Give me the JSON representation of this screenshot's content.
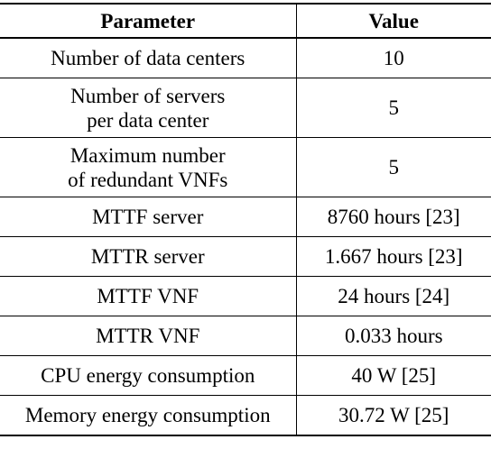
{
  "table": {
    "headers": [
      "Parameter",
      "Value"
    ],
    "rows": [
      {
        "parameter": [
          "Number of data centers"
        ],
        "value": "10"
      },
      {
        "parameter": [
          "Number of servers",
          "per data center"
        ],
        "value": "5"
      },
      {
        "parameter": [
          "Maximum number",
          "of redundant VNFs"
        ],
        "value": "5"
      },
      {
        "parameter": [
          "MTTF server"
        ],
        "value": "8760 hours [23]"
      },
      {
        "parameter": [
          "MTTR server"
        ],
        "value": "1.667 hours [23]"
      },
      {
        "parameter": [
          "MTTF VNF"
        ],
        "value": "24 hours [24]"
      },
      {
        "parameter": [
          "MTTR VNF"
        ],
        "value": "0.033 hours"
      },
      {
        "parameter": [
          "CPU energy consumption"
        ],
        "value": "40 W [25]"
      },
      {
        "parameter": [
          "Memory energy consumption"
        ],
        "value": "30.72 W [25]"
      }
    ]
  }
}
